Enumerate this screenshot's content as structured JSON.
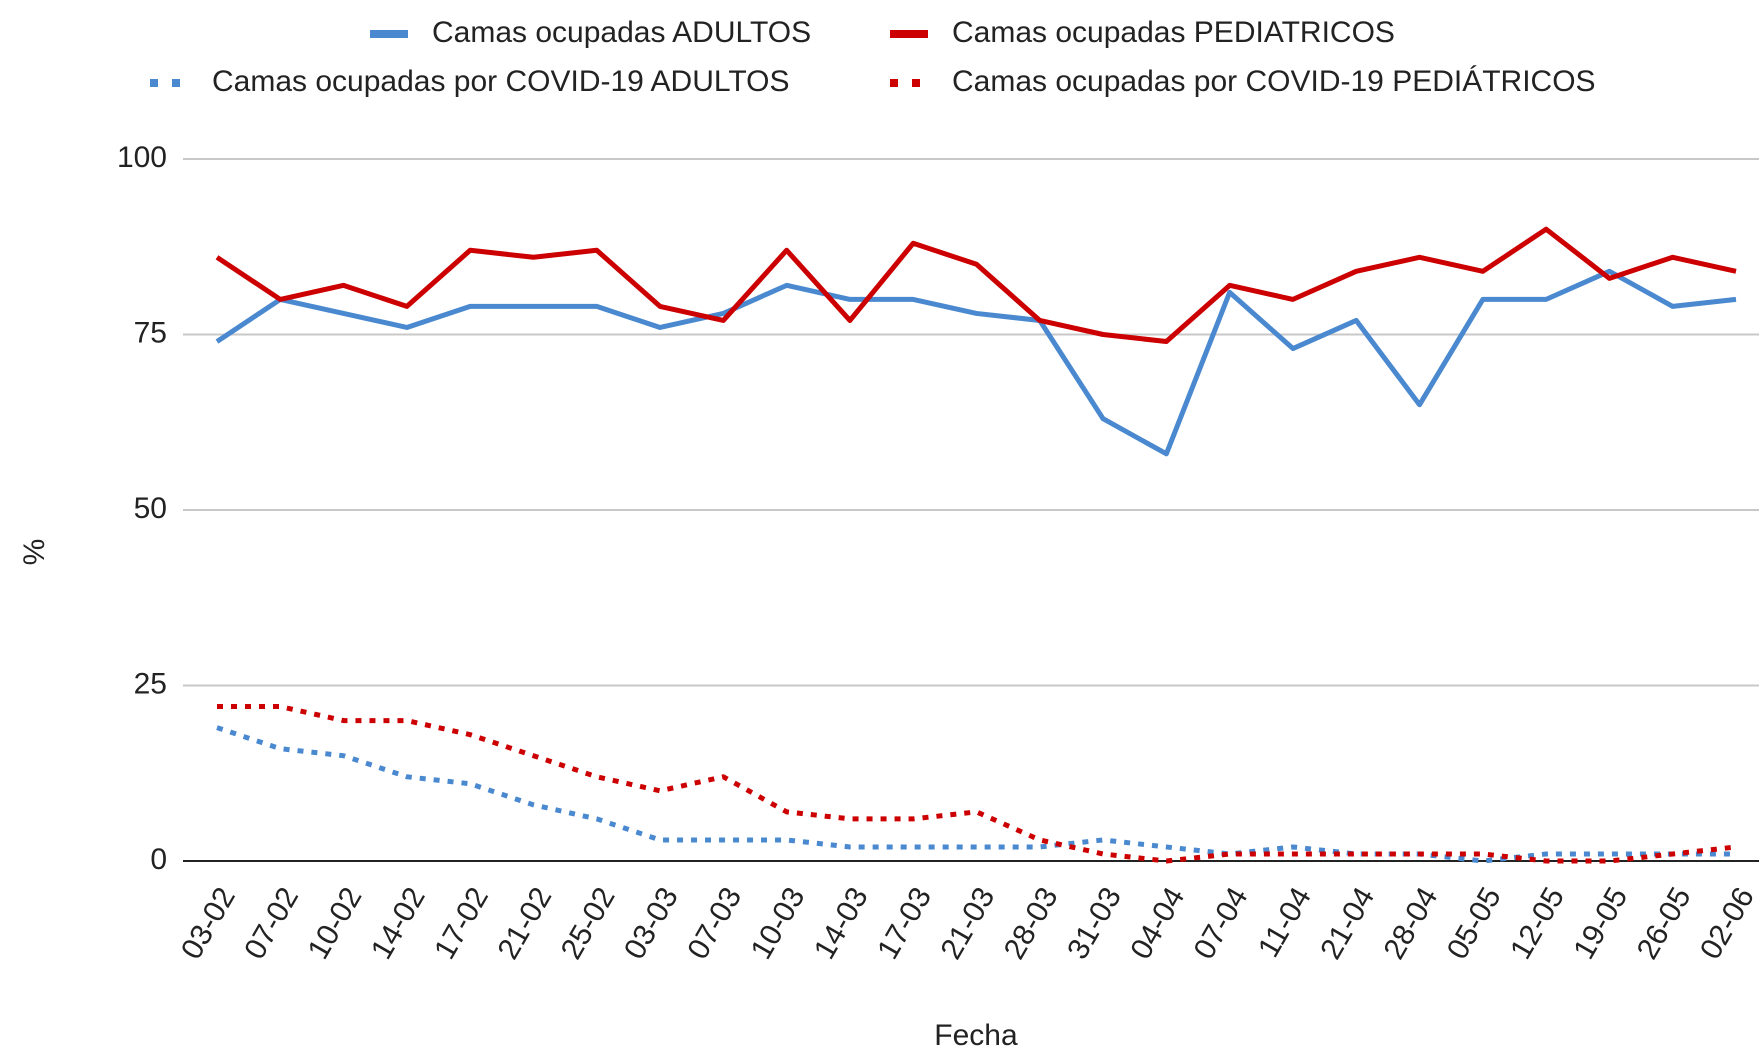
{
  "chart_data": {
    "type": "line",
    "x_label": "Fecha",
    "y_label": "%",
    "categories": [
      "03-02",
      "07-02",
      "10-02",
      "14-02",
      "17-02",
      "21-02",
      "25-02",
      "03-03",
      "07-03",
      "10-03",
      "14-03",
      "17-03",
      "21-03",
      "28-03",
      "31-03",
      "04-04",
      "07-04",
      "11-04",
      "21-04",
      "28-04",
      "05-05",
      "12-05",
      "19-05",
      "26-05",
      "02-06"
    ],
    "series": [
      {
        "name": "Camas ocupadas ADULTOS",
        "color": "#4a89cf",
        "style": "solid",
        "values": [
          74,
          80,
          78,
          76,
          79,
          79,
          79,
          76,
          78,
          82,
          80,
          80,
          78,
          77,
          63,
          58,
          81,
          73,
          77,
          65,
          80,
          80,
          84,
          79,
          80
        ]
      },
      {
        "name": "Camas ocupadas PEDIATRICOS",
        "color": "#cc0000",
        "style": "solid",
        "values": [
          86,
          80,
          82,
          79,
          87,
          86,
          87,
          79,
          77,
          87,
          77,
          88,
          85,
          77,
          75,
          74,
          82,
          80,
          84,
          86,
          84,
          90,
          83,
          86,
          84
        ]
      },
      {
        "name": "Camas ocupadas por COVID-19 ADULTOS",
        "color": "#4a89cf",
        "style": "dotted",
        "values": [
          19,
          16,
          15,
          12,
          11,
          8,
          6,
          3,
          3,
          3,
          2,
          2,
          2,
          2,
          3,
          2,
          1,
          2,
          1,
          1,
          0,
          1,
          1,
          1,
          1
        ]
      },
      {
        "name": "Camas ocupadas por COVID-19 PEDIÁTRICOS",
        "color": "#cc0000",
        "style": "dotted",
        "values": [
          22,
          22,
          20,
          20,
          18,
          15,
          12,
          10,
          12,
          7,
          6,
          6,
          7,
          3,
          1,
          0,
          1,
          1,
          1,
          1,
          1,
          0,
          0,
          1,
          2
        ]
      }
    ],
    "ylim": [
      0,
      100
    ],
    "yticks": [
      0,
      25,
      50,
      75,
      100
    ],
    "grid": true
  }
}
